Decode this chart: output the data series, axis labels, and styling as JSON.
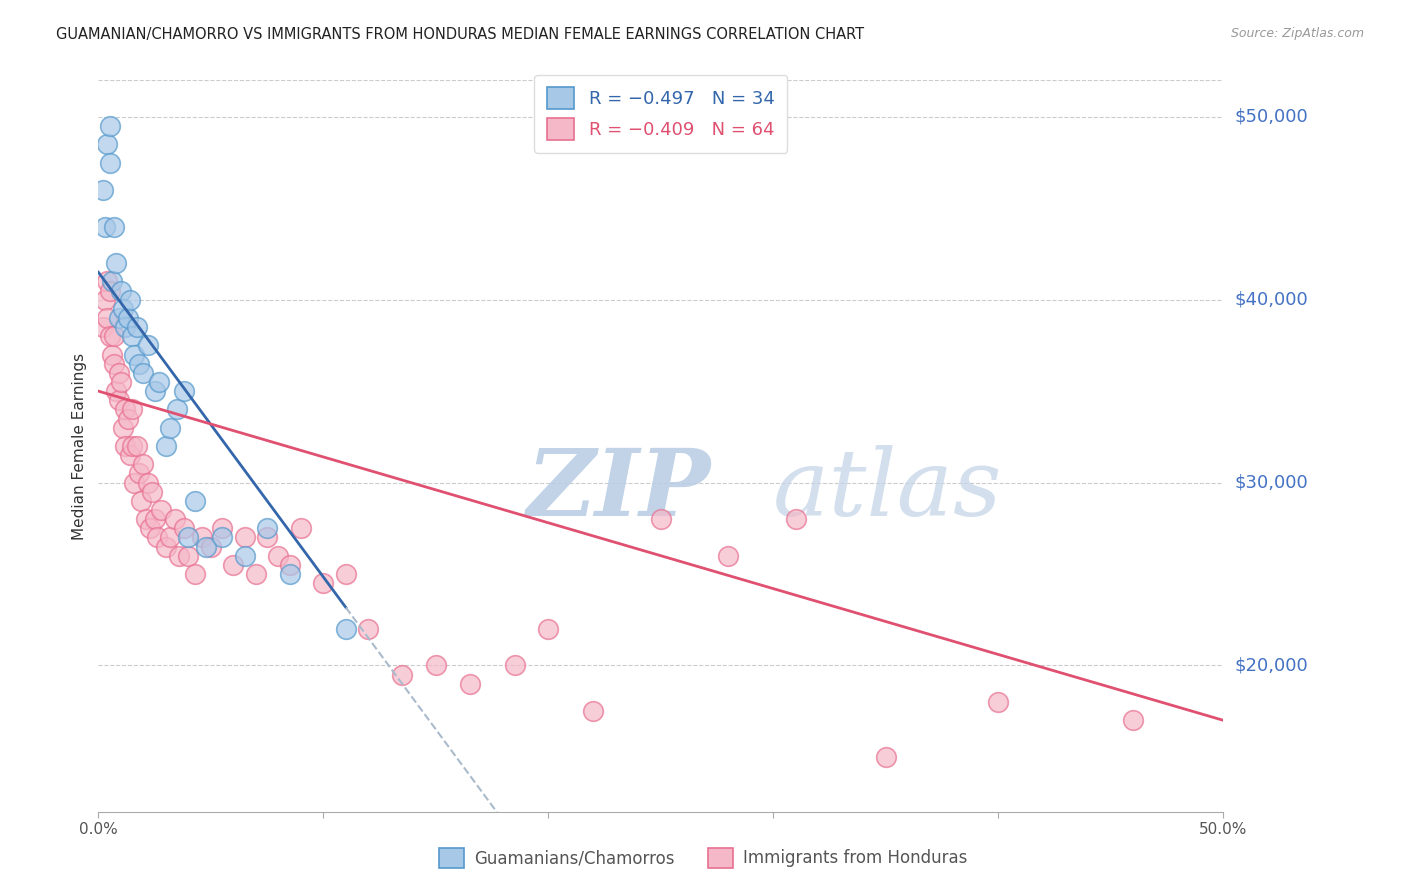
{
  "title": "GUAMANIAN/CHAMORRO VS IMMIGRANTS FROM HONDURAS MEDIAN FEMALE EARNINGS CORRELATION CHART",
  "source": "Source: ZipAtlas.com",
  "ylabel": "Median Female Earnings",
  "ytick_labels": [
    "$50,000",
    "$40,000",
    "$30,000",
    "$20,000"
  ],
  "ytick_values": [
    50000,
    40000,
    30000,
    20000
  ],
  "ymin": 12000,
  "ymax": 52000,
  "xmin": 0.0,
  "xmax": 0.5,
  "legend_blue_r": "R = −0.497",
  "legend_blue_n": "N = 34",
  "legend_pink_r": "R = −0.409",
  "legend_pink_n": "N = 64",
  "label_blue": "Guamanians/Chamorros",
  "label_pink": "Immigrants from Honduras",
  "blue_color": "#a8c8e8",
  "blue_edge_color": "#5599cc",
  "blue_line_color": "#3366aa",
  "pink_color": "#f5b8c8",
  "pink_edge_color": "#e87090",
  "pink_line_color": "#e05070",
  "dash_color": "#aabbcc",
  "watermark_zip": "ZIP",
  "watermark_atlas": "atlas",
  "watermark_color_zip": "#c5d8ee",
  "watermark_color_atlas": "#c0cce0",
  "title_color": "#222222",
  "source_color": "#999999",
  "axis_label_color": "#4472c4",
  "ytick_color": "#4472c4",
  "grid_color": "#cccccc",
  "blue_scatter_x": [
    0.002,
    0.003,
    0.004,
    0.005,
    0.005,
    0.006,
    0.007,
    0.008,
    0.009,
    0.01,
    0.011,
    0.012,
    0.013,
    0.014,
    0.015,
    0.016,
    0.017,
    0.018,
    0.02,
    0.022,
    0.025,
    0.027,
    0.03,
    0.032,
    0.035,
    0.038,
    0.04,
    0.043,
    0.048,
    0.055,
    0.065,
    0.075,
    0.085,
    0.11
  ],
  "blue_scatter_y": [
    46000,
    44000,
    48500,
    49500,
    47500,
    41000,
    44000,
    42000,
    39000,
    40500,
    39500,
    38500,
    39000,
    40000,
    38000,
    37000,
    38500,
    36500,
    36000,
    37500,
    35000,
    35500,
    32000,
    33000,
    34000,
    35000,
    27000,
    29000,
    26500,
    27000,
    26000,
    27500,
    25000,
    22000
  ],
  "pink_scatter_x": [
    0.002,
    0.003,
    0.004,
    0.004,
    0.005,
    0.005,
    0.006,
    0.007,
    0.007,
    0.008,
    0.009,
    0.009,
    0.01,
    0.011,
    0.012,
    0.012,
    0.013,
    0.014,
    0.015,
    0.015,
    0.016,
    0.017,
    0.018,
    0.019,
    0.02,
    0.021,
    0.022,
    0.023,
    0.024,
    0.025,
    0.026,
    0.028,
    0.03,
    0.032,
    0.034,
    0.036,
    0.038,
    0.04,
    0.043,
    0.046,
    0.05,
    0.055,
    0.06,
    0.065,
    0.07,
    0.075,
    0.08,
    0.085,
    0.09,
    0.1,
    0.11,
    0.12,
    0.135,
    0.15,
    0.165,
    0.185,
    0.2,
    0.22,
    0.25,
    0.28,
    0.31,
    0.35,
    0.4,
    0.46
  ],
  "pink_scatter_y": [
    38500,
    40000,
    39000,
    41000,
    38000,
    40500,
    37000,
    36500,
    38000,
    35000,
    34500,
    36000,
    35500,
    33000,
    34000,
    32000,
    33500,
    31500,
    32000,
    34000,
    30000,
    32000,
    30500,
    29000,
    31000,
    28000,
    30000,
    27500,
    29500,
    28000,
    27000,
    28500,
    26500,
    27000,
    28000,
    26000,
    27500,
    26000,
    25000,
    27000,
    26500,
    27500,
    25500,
    27000,
    25000,
    27000,
    26000,
    25500,
    27500,
    24500,
    25000,
    22000,
    19500,
    20000,
    19000,
    20000,
    22000,
    17500,
    28000,
    26000,
    28000,
    15000,
    18000,
    17000
  ]
}
